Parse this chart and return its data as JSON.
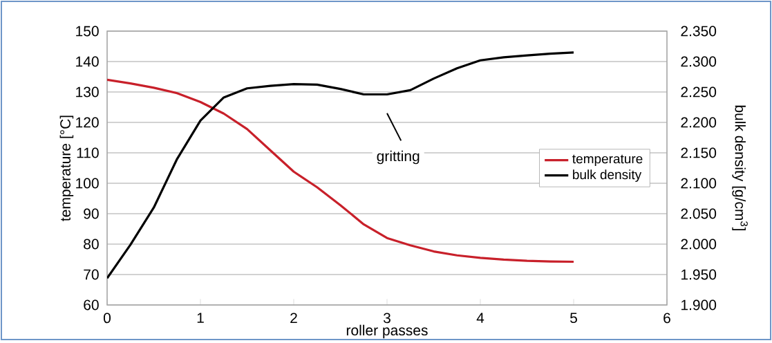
{
  "chart_data": {
    "type": "line",
    "xlabel": "roller passes",
    "ylabel": "temperature [°C]",
    "y2label": "bulk density [g/cm$^{3}$]",
    "x": [
      0,
      0.25,
      0.5,
      0.75,
      1.0,
      1.25,
      1.5,
      1.75,
      2.0,
      2.25,
      2.5,
      2.75,
      3.0,
      3.25,
      3.5,
      3.75,
      4.0,
      4.25,
      4.5,
      4.75,
      5.0
    ],
    "series": [
      {
        "name": "temperature",
        "color": "#c8202a",
        "values": [
          134,
          132.8,
          131.4,
          129.6,
          126.7,
          122.9,
          117.8,
          110.8,
          103.8,
          98.7,
          92.8,
          86.5,
          82,
          79.6,
          77.6,
          76.3,
          75.5,
          74.9,
          74.5,
          74.3,
          74.2
        ]
      },
      {
        "name": "bulk density",
        "color": "#000000",
        "axis": "y2",
        "values": [
          1.944,
          1.999,
          2.06,
          2.14,
          2.203,
          2.241,
          2.256,
          2.26,
          2.263,
          2.262,
          2.255,
          2.246,
          2.246,
          2.253,
          2.272,
          2.289,
          2.302,
          2.307,
          2.31,
          2.313,
          2.315
        ]
      }
    ],
    "xlim": [
      0,
      6
    ],
    "xticks": [
      0,
      1,
      2,
      3,
      4,
      5,
      6
    ],
    "ylim": [
      60,
      150
    ],
    "yticks": [
      60,
      70,
      80,
      90,
      100,
      110,
      120,
      130,
      140,
      150
    ],
    "y2lim": [
      1.9,
      2.35
    ],
    "y2ticks": [
      {
        "value": 1.9,
        "label": "1.900"
      },
      {
        "value": 1.95,
        "label": "1.950"
      },
      {
        "value": 2.0,
        "label": "2.000"
      },
      {
        "value": 2.05,
        "label": "2.050"
      },
      {
        "value": 2.1,
        "label": "2.100"
      },
      {
        "value": 2.15,
        "label": "2.150"
      },
      {
        "value": 2.2,
        "label": "2.200"
      },
      {
        "value": 2.25,
        "label": "2.250"
      },
      {
        "value": 2.3,
        "label": "2.300"
      },
      {
        "value": 2.35,
        "label": "2.350"
      }
    ],
    "annotations": [
      "gritting"
    ],
    "grid": "y",
    "legend": "right",
    "marker": "none",
    "line_style": "solid"
  }
}
